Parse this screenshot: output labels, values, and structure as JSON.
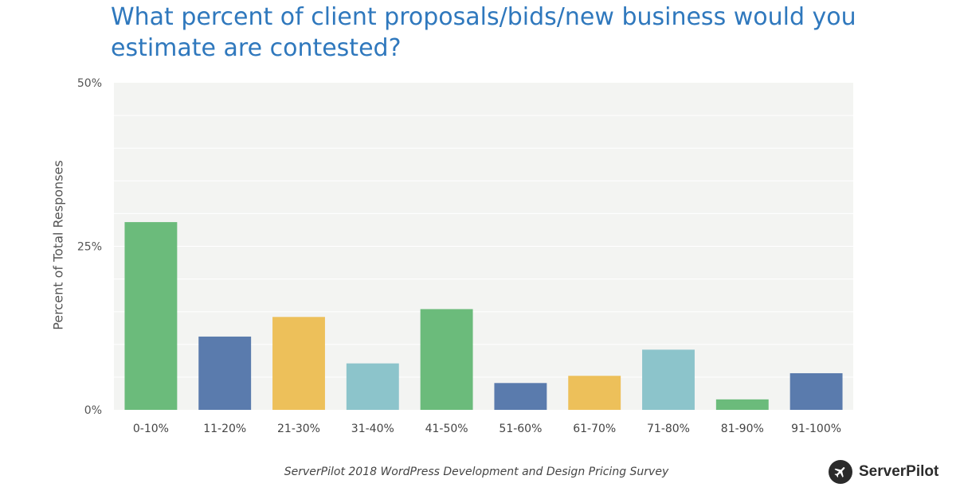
{
  "chart_data": {
    "type": "bar",
    "title": "What percent of client proposals/bids/new business would you estimate are contested?",
    "xlabel": "",
    "ylabel": "Percent of Total Responses",
    "categories": [
      "0-10%",
      "11-20%",
      "21-30%",
      "31-40%",
      "41-50%",
      "51-60%",
      "61-70%",
      "71-80%",
      "81-90%",
      "91-100%"
    ],
    "values": [
      28.7,
      11.2,
      14.2,
      7.1,
      15.4,
      4.1,
      5.2,
      9.2,
      1.6,
      5.6
    ],
    "bar_colors": [
      "#6bbb7b",
      "#5a7bad",
      "#edc05a",
      "#8cc4cb",
      "#6bbb7b",
      "#5a7bad",
      "#edc05a",
      "#8cc4cb",
      "#6bbb7b",
      "#5a7bad"
    ],
    "ylim": [
      0,
      50
    ],
    "yticks": [
      0,
      25,
      50
    ],
    "ytick_labels": [
      "0%",
      "25%",
      "50%"
    ],
    "grid": true,
    "plot_background": "#f3f4f2"
  },
  "footer": {
    "caption": "ServerPilot 2018 WordPress Development and Design Pricing Survey",
    "logo_text": "ServerPilot"
  }
}
